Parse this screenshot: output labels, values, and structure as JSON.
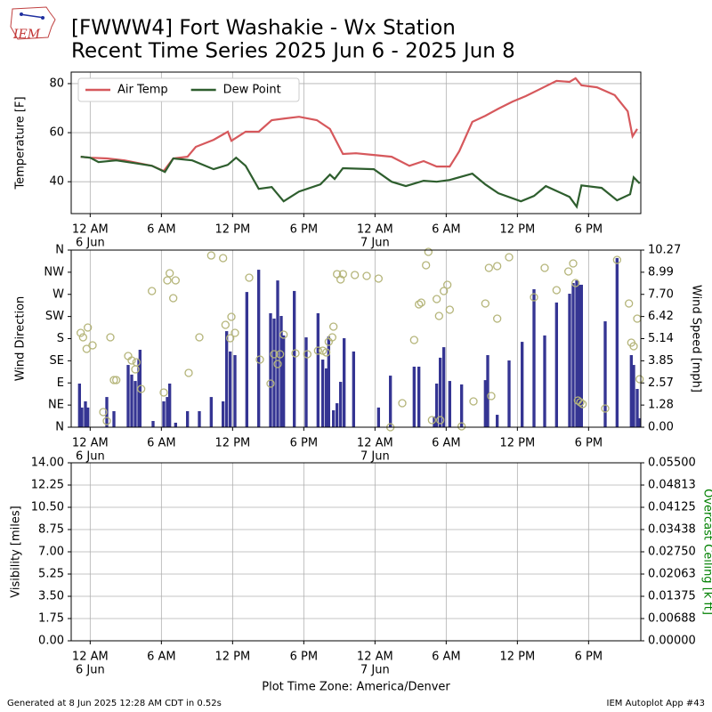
{
  "title": "[FWWW4] Fort Washakie - Wx Station",
  "subtitle": "Recent Time Series 2025 Jun 6 - 2025 Jun 8",
  "logo_text": "IEM",
  "footer_left": "Generated at 8 Jun 2025 12:28 AM CDT in 0.52s",
  "footer_right": "IEM Autoplot App #43",
  "chart_data": [
    {
      "type": "line",
      "ylabel": "Temperature [F]",
      "xlim": [
        -1.6,
        46.4
      ],
      "xticks": [
        {
          "value": 0,
          "label": "12 AM"
        },
        {
          "value": 6,
          "label": "6 AM"
        },
        {
          "value": 12,
          "label": "12 PM"
        },
        {
          "value": 18,
          "label": "6 PM"
        },
        {
          "value": 24,
          "label": "12 AM"
        },
        {
          "value": 30,
          "label": "6 AM"
        },
        {
          "value": 36,
          "label": "12 PM"
        },
        {
          "value": 42,
          "label": "6 PM"
        }
      ],
      "date_labels": [
        {
          "value": 0,
          "label": "6 Jun"
        },
        {
          "value": 24,
          "label": "7 Jun"
        }
      ],
      "ylim": [
        27,
        84.7
      ],
      "yticks": [
        40,
        60,
        80
      ],
      "grid": "both",
      "legend": "upper left",
      "series": [
        {
          "name": "Air Temp",
          "kind": "line",
          "color": "#d6585c",
          "x": [
            -0.8,
            0,
            1.4,
            2.9,
            5.2,
            6.2,
            7.0,
            8.2,
            8.9,
            10.4,
            11.6,
            11.9,
            13.1,
            14.2,
            15.3,
            16.4,
            17.6,
            19.1,
            20.2,
            21.3,
            22.4,
            23.9,
            25.4,
            26.9,
            28.1,
            29.2,
            30.3,
            31.1,
            32.2,
            33.3,
            34.4,
            35.6,
            36.7,
            37.8,
            39.3,
            40.4,
            40.9,
            41.4,
            42.7,
            44.2,
            45.3,
            45.7,
            46.1
          ],
          "values": [
            50.2,
            49.8,
            49.5,
            48.7,
            46.5,
            44.4,
            49.5,
            50.2,
            54.2,
            57.1,
            60.4,
            56.7,
            60.4,
            60.4,
            65.1,
            65.8,
            66.5,
            65.1,
            61.5,
            51.3,
            51.6,
            50.9,
            50.2,
            46.5,
            48.4,
            46.2,
            46.2,
            52.4,
            64.4,
            66.9,
            69.8,
            72.7,
            74.9,
            77.5,
            81.1,
            80.7,
            82.2,
            79.3,
            78.5,
            75.3,
            68.7,
            58.5,
            61.5
          ]
        },
        {
          "name": "Dew Point",
          "kind": "line",
          "color": "#2e5e2e",
          "x": [
            -0.8,
            0,
            0.7,
            2.2,
            3.7,
            5.2,
            6.3,
            7.0,
            8.6,
            10.4,
            11.6,
            12.3,
            13.1,
            14.2,
            15.3,
            16.3,
            17.6,
            19.4,
            20.2,
            20.6,
            21.3,
            23.9,
            25.4,
            26.6,
            28.1,
            29.2,
            30.3,
            32.2,
            33.3,
            34.4,
            36.3,
            37.4,
            38.4,
            40.4,
            41.0,
            41.4,
            43.1,
            44.4,
            45.5,
            45.8,
            46.3
          ],
          "values": [
            50.2,
            49.8,
            48.0,
            48.7,
            47.6,
            46.5,
            44.0,
            49.5,
            48.7,
            45.1,
            46.9,
            49.8,
            46.5,
            37.1,
            37.8,
            32.0,
            36.0,
            38.9,
            42.9,
            41.1,
            45.5,
            45.1,
            40.0,
            38.2,
            40.4,
            40.0,
            40.7,
            43.3,
            38.9,
            35.3,
            32.0,
            34.2,
            38.2,
            33.8,
            29.8,
            38.5,
            37.5,
            32.4,
            34.9,
            41.8,
            39.3
          ]
        }
      ]
    },
    {
      "type": "scatter",
      "ylabel": "Wind Direction",
      "y2label": "Wind Speed [mph]",
      "xlim": [
        -1.6,
        46.4
      ],
      "xticks": [
        {
          "value": 0,
          "label": "12 AM"
        },
        {
          "value": 6,
          "label": "6 AM"
        },
        {
          "value": 12,
          "label": "12 PM"
        },
        {
          "value": 18,
          "label": "6 PM"
        },
        {
          "value": 24,
          "label": "12 AM"
        },
        {
          "value": 30,
          "label": "6 AM"
        },
        {
          "value": 36,
          "label": "12 PM"
        },
        {
          "value": 42,
          "label": "6 PM"
        }
      ],
      "date_labels": [
        {
          "value": 0,
          "label": "6 Jun"
        },
        {
          "value": 24,
          "label": "7 Jun"
        }
      ],
      "ylim": [
        0,
        360
      ],
      "yticks": [
        {
          "value": 0,
          "label": "N"
        },
        {
          "value": 45,
          "label": "NE"
        },
        {
          "value": 90,
          "label": "E"
        },
        {
          "value": 135,
          "label": "SE"
        },
        {
          "value": 180,
          "label": "S"
        },
        {
          "value": 225,
          "label": "SW"
        },
        {
          "value": 270,
          "label": "W"
        },
        {
          "value": 315,
          "label": "NW"
        },
        {
          "value": 360,
          "label": "N"
        }
      ],
      "y2lim": [
        0,
        10.27
      ],
      "y2ticks": [
        {
          "value": 0,
          "label": "0.00"
        },
        {
          "value": 1.28375,
          "label": "1.28"
        },
        {
          "value": 2.5675,
          "label": "2.57"
        },
        {
          "value": 3.85125,
          "label": "3.85"
        },
        {
          "value": 5.135,
          "label": "5.14"
        },
        {
          "value": 6.41875,
          "label": "6.42"
        },
        {
          "value": 7.7025,
          "label": "7.70"
        },
        {
          "value": 8.98625,
          "label": "8.99"
        },
        {
          "value": 10.27,
          "label": "10.27"
        }
      ],
      "grid": "x",
      "series": [
        {
          "kind": "bar",
          "axis": "y2",
          "color": "#353593",
          "x": [
            -0.9,
            -0.7,
            -0.4,
            -0.2,
            1.4,
            2.0,
            3.2,
            3.5,
            3.8,
            4.1,
            4.2,
            5.3,
            6.2,
            6.5,
            6.7,
            7.2,
            8.2,
            9.2,
            10.2,
            11.2,
            11.5,
            11.8,
            12.2,
            13.2,
            14.2,
            15.2,
            15.5,
            15.8,
            16.1,
            16.3,
            17.2,
            18.2,
            19.2,
            19.6,
            19.9,
            20.1,
            20.5,
            20.8,
            21.1,
            21.4,
            22.2,
            24.3,
            25.3,
            27.3,
            27.7,
            29.0,
            29.2,
            29.5,
            29.8,
            30.3,
            31.3,
            33.3,
            33.5,
            34.3,
            35.3,
            36.4,
            37.4,
            38.3,
            39.3,
            40.4,
            40.7,
            41.0,
            41.2,
            41.4,
            43.4,
            44.4,
            45.6,
            45.8,
            46.1,
            46.3
          ],
          "values": [
            2.53,
            1.14,
            1.5,
            1.14,
            1.75,
            0.93,
            3.61,
            3.05,
            2.68,
            3.97,
            4.49,
            0.36,
            1.5,
            1.75,
            2.53,
            0.26,
            0.93,
            0.93,
            1.75,
            1.5,
            5.57,
            4.39,
            4.18,
            7.84,
            9.13,
            6.61,
            6.3,
            8.51,
            6.45,
            5.32,
            7.9,
            5.21,
            6.61,
            3.92,
            3.41,
            5.26,
            0.98,
            1.39,
            2.63,
            5.16,
            4.39,
            1.14,
            2.99,
            3.51,
            3.51,
            0.62,
            2.53,
            4.03,
            4.64,
            2.68,
            2.48,
            2.73,
            4.18,
            0.72,
            3.87,
            4.95,
            8.0,
            5.32,
            7.23,
            7.74,
            8.36,
            8.51,
            8.26,
            8.26,
            6.14,
            9.81,
            4.18,
            3.61,
            2.22,
            0.52
          ]
        },
        {
          "kind": "scatter",
          "color": "#b5b57a",
          "x": [
            -0.8,
            -0.6,
            -0.2,
            -0.3,
            0.2,
            1.1,
            1.4,
            1.7,
            2.0,
            2.2,
            3.2,
            3.5,
            3.8,
            3.9,
            4.3,
            5.2,
            6.2,
            6.5,
            6.7,
            7.0,
            7.2,
            8.3,
            9.2,
            10.2,
            11.2,
            11.4,
            11.8,
            11.9,
            12.2,
            13.4,
            14.3,
            15.2,
            15.5,
            15.8,
            16.0,
            16.3,
            17.3,
            18.3,
            19.2,
            19.6,
            19.9,
            20.1,
            20.4,
            20.5,
            20.8,
            21.1,
            21.3,
            22.3,
            23.3,
            24.3,
            25.3,
            26.3,
            27.3,
            27.7,
            27.9,
            28.3,
            28.5,
            28.8,
            29.2,
            29.4,
            29.5,
            29.8,
            30.1,
            30.3,
            31.3,
            32.3,
            33.3,
            33.6,
            33.8,
            34.3,
            34.3,
            35.3,
            37.4,
            38.3,
            39.3,
            40.3,
            40.7,
            40.9,
            41.1,
            41.3,
            41.5,
            43.4,
            44.4,
            45.4,
            45.6,
            45.8,
            46.1,
            46.3
          ],
          "values": [
            191.8,
            182.7,
            202.6,
            159.2,
            166.4,
            30.8,
            12.7,
            182.7,
            95.9,
            95.9,
            144.7,
            135.7,
            117.6,
            132.1,
            77.8,
            276.8,
            70.6,
            298.5,
            313.0,
            262.3,
            298.5,
            110.4,
            182.7,
            349.1,
            343.7,
            208.0,
            180.9,
            224.3,
            191.8,
            303.9,
            137.5,
            88.6,
            148.3,
            128.4,
            148.3,
            188.1,
            150.2,
            148.3,
            155.6,
            155.6,
            151.9,
            173.7,
            182.7,
            204.4,
            311.2,
            300.3,
            311.2,
            309.4,
            307.5,
            302.1,
            0,
            48.8,
            177.3,
            249.7,
            253.3,
            329.3,
            356.4,
            14.5,
            260.5,
            226.1,
            14.5,
            276.8,
            289.4,
            238.8,
            1.8,
            52.5,
            251.5,
            323.8,
            63.3,
            220.7,
            327.5,
            345.5,
            264.1,
            323.8,
            278.6,
            316.6,
            332.9,
            293.1,
            54.3,
            50.7,
            47.0,
            38.0,
            340.1,
            251.5,
            171.9,
            164.6,
            220.7,
            97.7
          ]
        }
      ]
    },
    {
      "type": "line",
      "ylabel": "Visibility [miles]",
      "y2label": "Overcast Ceiling [k ft]",
      "y2label_color": "#008000",
      "xlabel": "Plot Time Zone: America/Denver",
      "xlim": [
        -1.6,
        46.4
      ],
      "xticks": [
        {
          "value": 0,
          "label": "12 AM"
        },
        {
          "value": 6,
          "label": "6 AM"
        },
        {
          "value": 12,
          "label": "12 PM"
        },
        {
          "value": 18,
          "label": "6 PM"
        },
        {
          "value": 24,
          "label": "12 AM"
        },
        {
          "value": 30,
          "label": "6 AM"
        },
        {
          "value": 36,
          "label": "12 PM"
        },
        {
          "value": 42,
          "label": "6 PM"
        }
      ],
      "date_labels": [
        {
          "value": 0,
          "label": "6 Jun"
        },
        {
          "value": 24,
          "label": "7 Jun"
        }
      ],
      "ylim": [
        0,
        14
      ],
      "yticks": [
        {
          "value": 0,
          "label": "0.00"
        },
        {
          "value": 1.75,
          "label": "1.75"
        },
        {
          "value": 3.5,
          "label": "3.50"
        },
        {
          "value": 5.25,
          "label": "5.25"
        },
        {
          "value": 7,
          "label": "7.00"
        },
        {
          "value": 8.75,
          "label": "8.75"
        },
        {
          "value": 10.5,
          "label": "10.50"
        },
        {
          "value": 12.25,
          "label": "12.25"
        },
        {
          "value": 14,
          "label": "14.00"
        }
      ],
      "y2lim": [
        0,
        0.055
      ],
      "y2ticks": [
        {
          "value": 0,
          "label": "0.00000"
        },
        {
          "value": 0.006875,
          "label": "0.00688"
        },
        {
          "value": 0.01375,
          "label": "0.01375"
        },
        {
          "value": 0.020625,
          "label": "0.02063"
        },
        {
          "value": 0.0275,
          "label": "0.02750"
        },
        {
          "value": 0.034375,
          "label": "0.03438"
        },
        {
          "value": 0.04125,
          "label": "0.04125"
        },
        {
          "value": 0.048125,
          "label": "0.04813"
        },
        {
          "value": 0.055,
          "label": "0.05500"
        }
      ],
      "grid": "both",
      "series": []
    }
  ]
}
